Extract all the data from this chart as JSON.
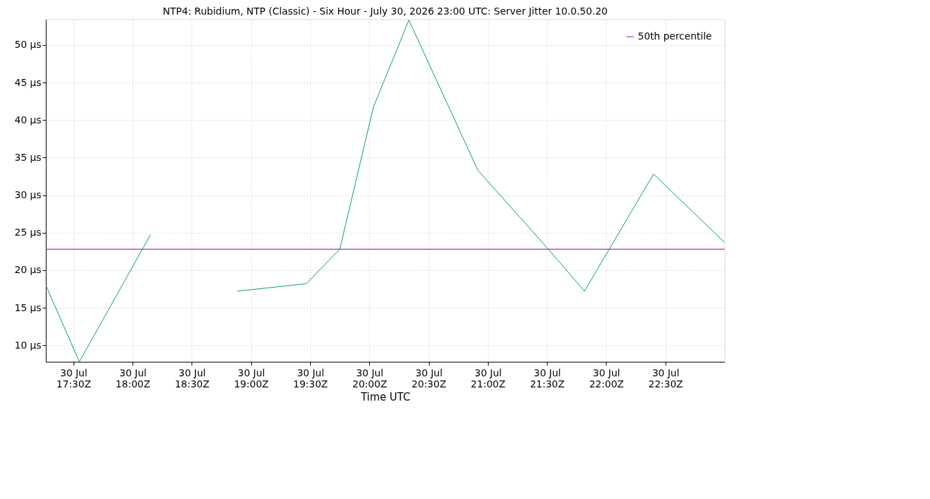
{
  "chart_data": {
    "type": "line",
    "title": "NTP4: Rubidium, NTP (Classic) - Six Hour - July 30, 2026 23:00 UTC: Server Jitter 10.0.50.20",
    "xlabel": "Time UTC",
    "series": [
      {
        "name": "50th percentile",
        "color": "#9400d3",
        "x": [
          "2026-07-30T17:16",
          "2026-07-30T23:00"
        ],
        "values": [
          22.8,
          22.8
        ]
      },
      {
        "color": "#009e73",
        "x": [
          "2026-07-30T17:16",
          "2026-07-30T17:33",
          "2026-07-30T18:09",
          "2026-07-30T18:30",
          "2026-07-30T18:53",
          "2026-07-30T19:28",
          "2026-07-30T19:45",
          "2026-07-30T20:02",
          "2026-07-30T20:20",
          "2026-07-30T20:55",
          "2026-07-30T21:30",
          "2026-07-30T21:49",
          "2026-07-30T22:24",
          "2026-07-30T23:00"
        ],
        "values": [
          18.0,
          7.8,
          24.7,
          null,
          17.2,
          18.2,
          22.8,
          41.7,
          53.3,
          33.3,
          23.0,
          17.2,
          32.8,
          23.7
        ]
      }
    ],
    "xlim": [
      "2026-07-30T17:16",
      "2026-07-30T23:00"
    ],
    "xticks": [
      {
        "value": "2026-07-30T17:30",
        "label": "30 Jul\n17:30Z"
      },
      {
        "value": "2026-07-30T18:00",
        "label": "30 Jul\n18:00Z"
      },
      {
        "value": "2026-07-30T18:30",
        "label": "30 Jul\n18:30Z"
      },
      {
        "value": "2026-07-30T19:00",
        "label": "30 Jul\n19:00Z"
      },
      {
        "value": "2026-07-30T19:30",
        "label": "30 Jul\n19:30Z"
      },
      {
        "value": "2026-07-30T20:00",
        "label": "30 Jul\n20:00Z"
      },
      {
        "value": "2026-07-30T20:30",
        "label": "30 Jul\n20:30Z"
      },
      {
        "value": "2026-07-30T21:00",
        "label": "30 Jul\n21:00Z"
      },
      {
        "value": "2026-07-30T21:30",
        "label": "30 Jul\n21:30Z"
      },
      {
        "value": "2026-07-30T22:00",
        "label": "30 Jul\n22:00Z"
      },
      {
        "value": "2026-07-30T22:30",
        "label": "30 Jul\n22:30Z"
      }
    ],
    "ylim": [
      7.8,
      53.4
    ],
    "yticks": [
      {
        "value": 10,
        "label": "10 µs"
      },
      {
        "value": 15,
        "label": "15 µs"
      },
      {
        "value": 20,
        "label": "20 µs"
      },
      {
        "value": 25,
        "label": "25 µs"
      },
      {
        "value": 30,
        "label": "30 µs"
      },
      {
        "value": 35,
        "label": "35 µs"
      },
      {
        "value": 40,
        "label": "40 µs"
      },
      {
        "value": 45,
        "label": "45 µs"
      },
      {
        "value": 50,
        "label": "50 µs"
      }
    ],
    "grid": true,
    "legend": "top right",
    "line_style": "solid",
    "marker": "none"
  }
}
